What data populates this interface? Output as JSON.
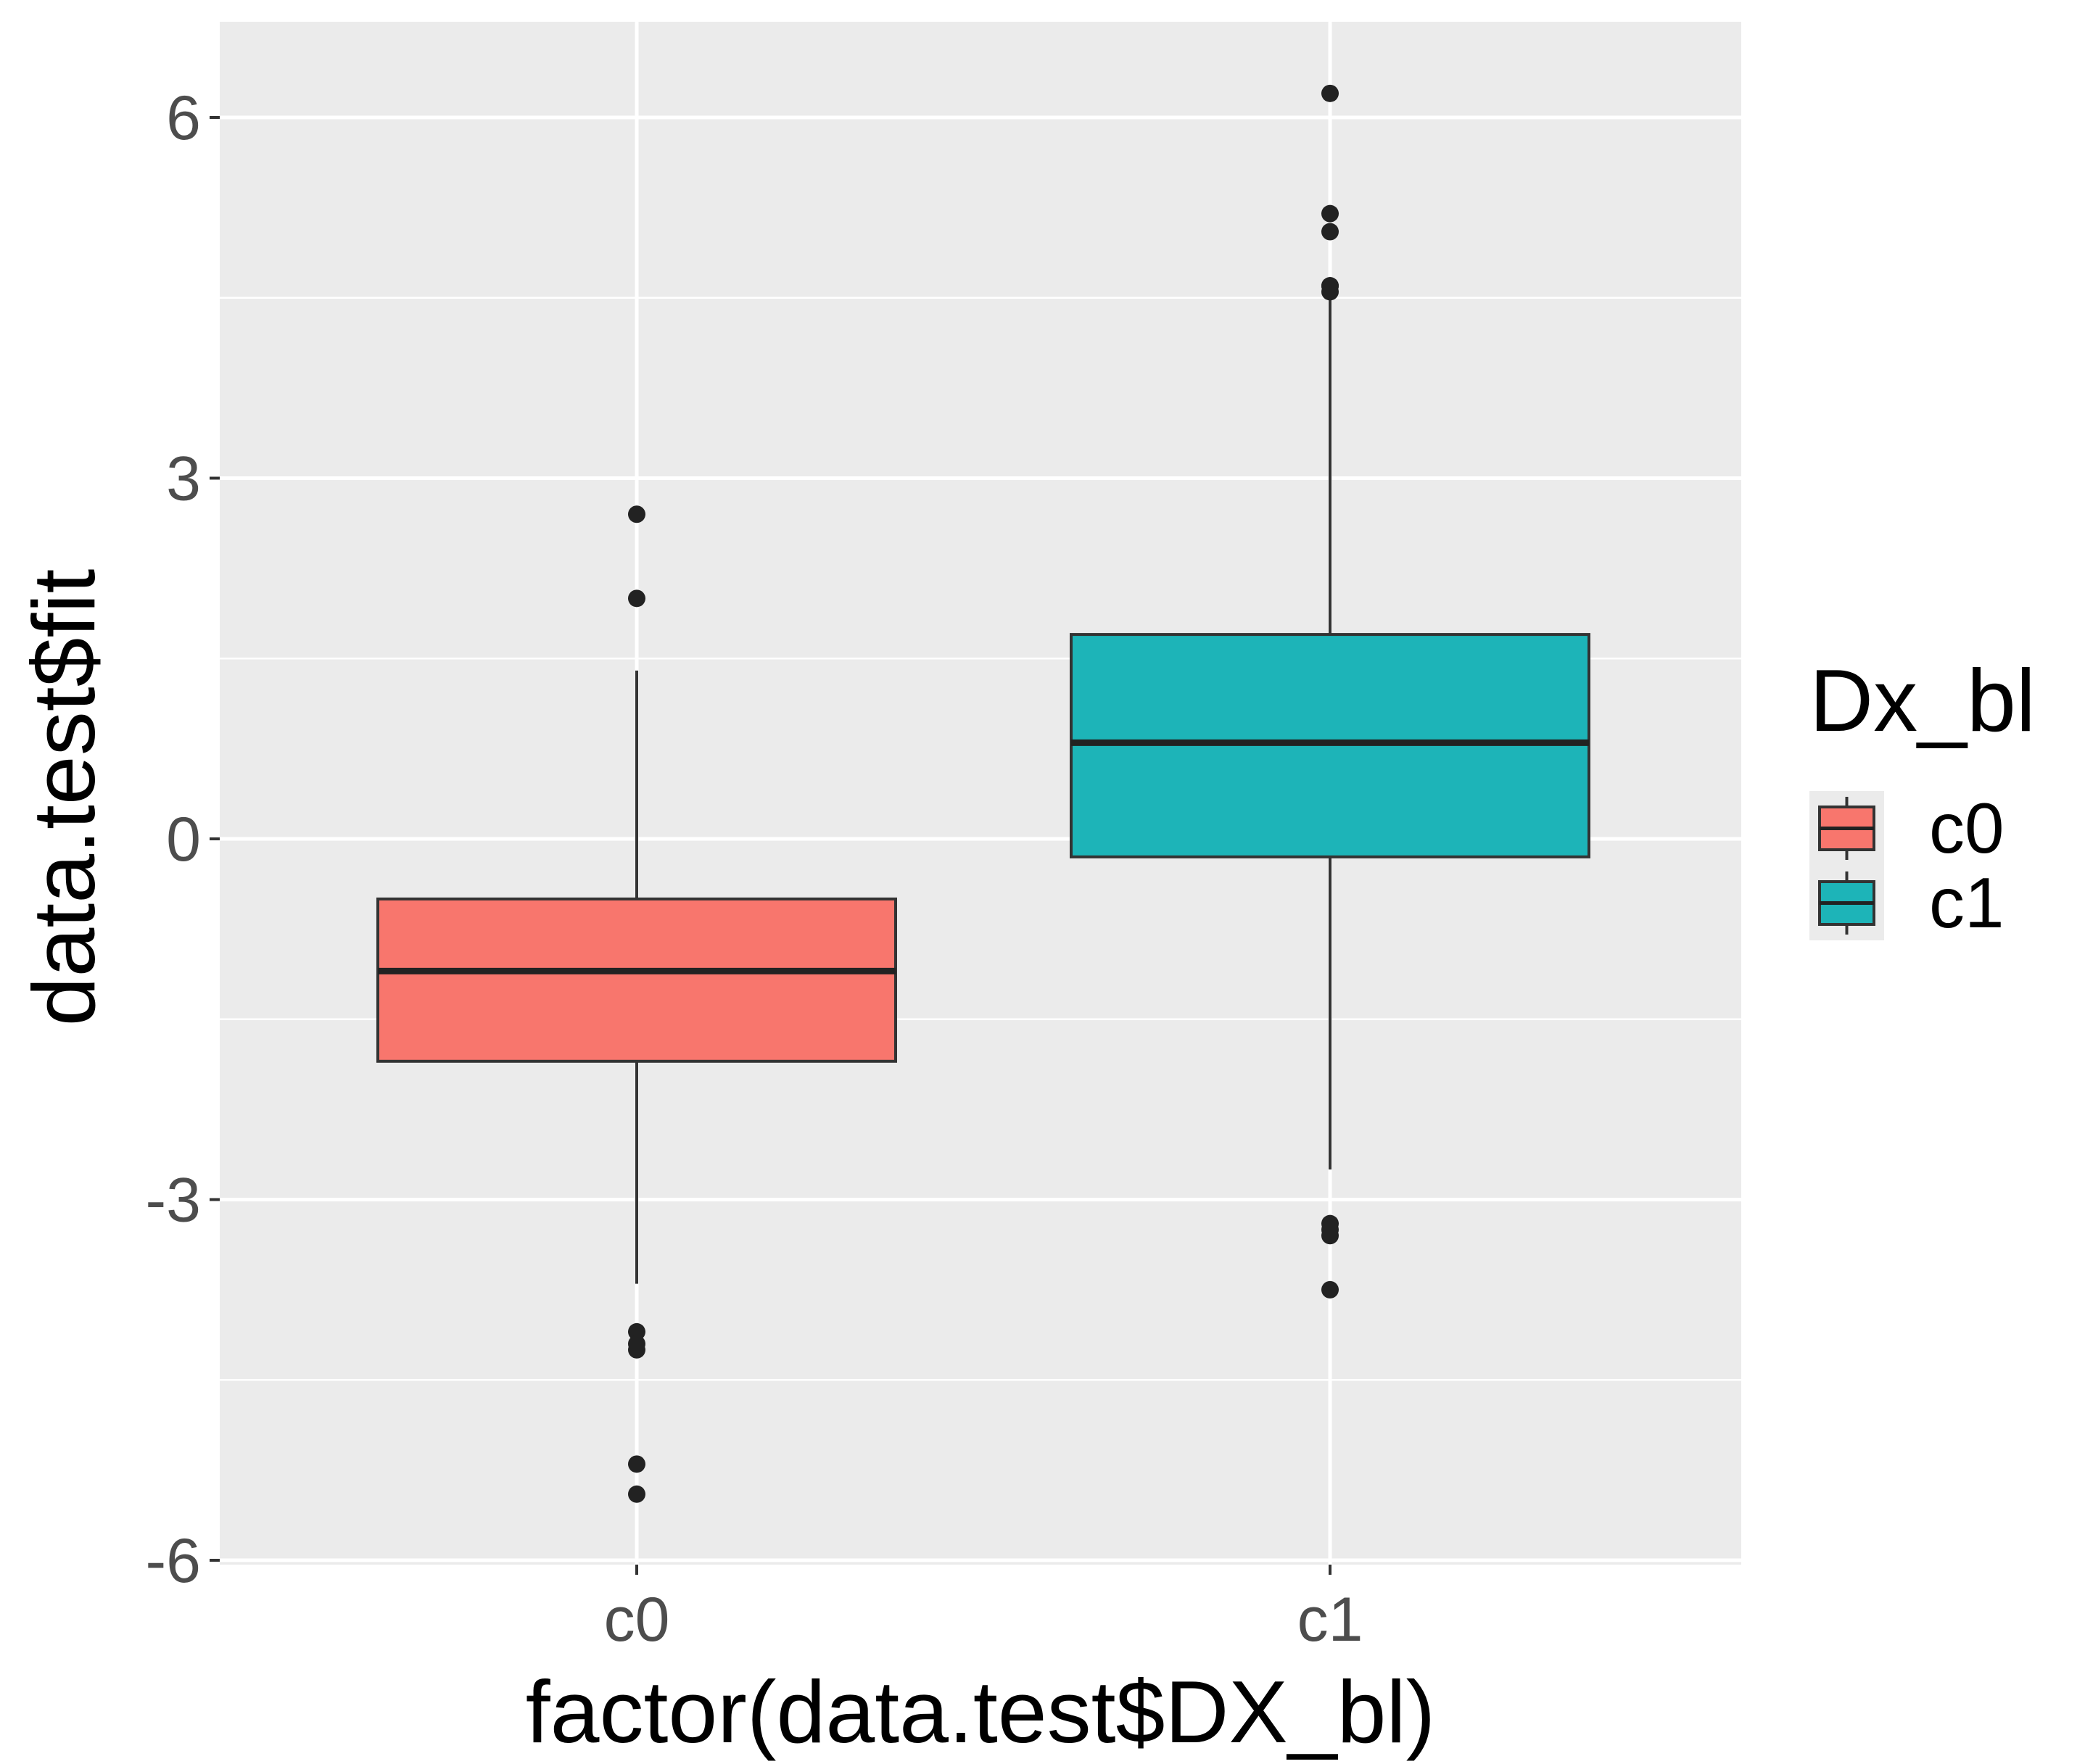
{
  "chart_data": {
    "type": "boxplot",
    "title": "",
    "xlabel": "factor(data.test$DX_bl)",
    "ylabel": "data.test$fit",
    "ylim": [
      -6.05,
      6.8
    ],
    "yticks": [
      -6,
      -3,
      0,
      3,
      6
    ],
    "ytick_labels": [
      "-6",
      "-3",
      "0",
      "3",
      "6"
    ],
    "categories": [
      "c0",
      "c1"
    ],
    "series": [
      {
        "name": "c0",
        "color": "#F8766D",
        "whisker_low": -3.7,
        "q1": -1.85,
        "median": -1.1,
        "q3": -0.5,
        "whisker_high": 1.4,
        "outliers": [
          2.7,
          2.0,
          -4.1,
          -4.2,
          -4.25,
          -5.2,
          -5.45
        ]
      },
      {
        "name": "c1",
        "color": "#00BFC4",
        "whisker_low": -2.75,
        "q1": -0.15,
        "median": 0.8,
        "q3": 1.7,
        "whisker_high": 4.5,
        "outliers": [
          6.2,
          5.2,
          5.05,
          4.6,
          4.55,
          4.6,
          -3.2,
          -3.25,
          -3.3,
          -3.75
        ]
      }
    ],
    "legend": {
      "title": "Dx_bl",
      "position": "right",
      "entries": [
        {
          "label": "c0",
          "color": "#F8766D"
        },
        {
          "label": "c1",
          "color": "#00BFC4"
        }
      ]
    },
    "grid": true
  },
  "colors": {
    "panel_background": "#EBEBEB",
    "grid": "#FFFFFF",
    "box_outline": "#333333",
    "c0_fill": "#F8766D",
    "c1_fill": "#1DB4B8"
  }
}
